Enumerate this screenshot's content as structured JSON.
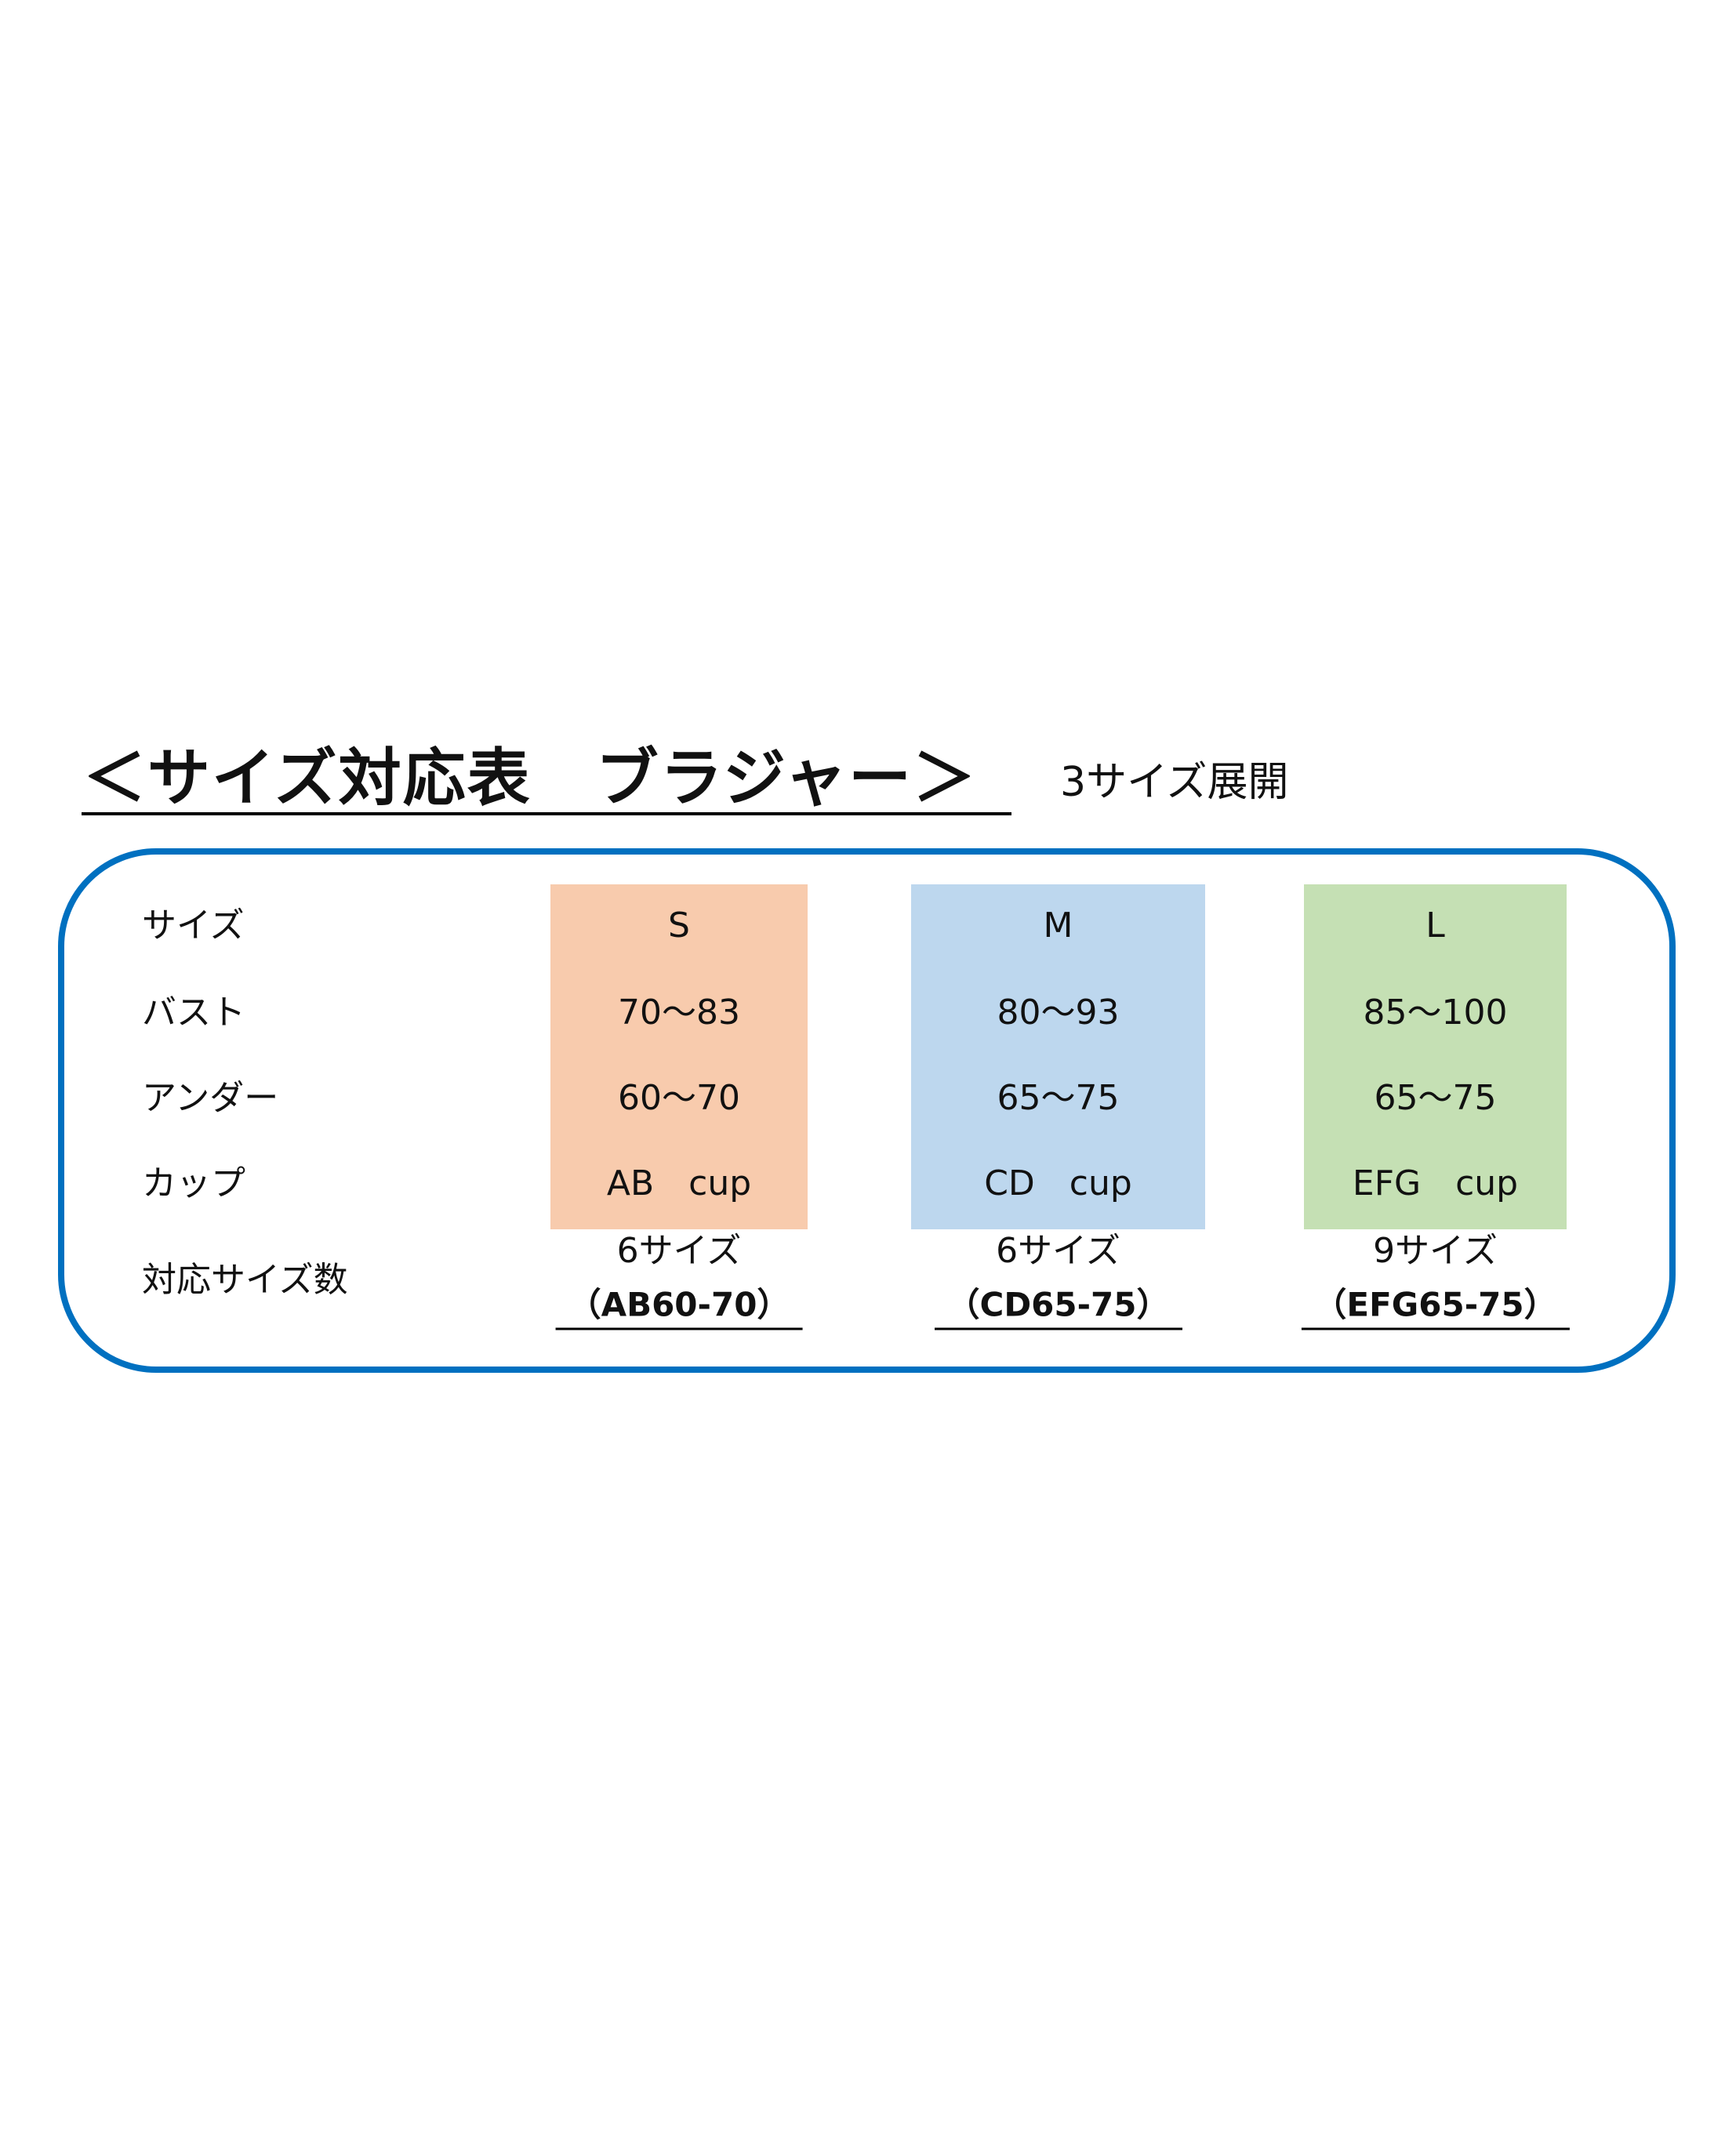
{
  "title": "＜サイズ対応表　ブラジャー＞",
  "subtitle": "3サイズ展開",
  "row_labels": [
    "サイズ",
    "バスト",
    "アンダー",
    "カップ",
    "対応サイズ数"
  ],
  "columns": [
    {
      "size": "S",
      "bust": "70〜83",
      "under": "60〜70",
      "cup": "AB　cup",
      "count": "6サイズ",
      "code": "（AB60-70）",
      "color": "#F8CBAD"
    },
    {
      "size": "M",
      "bust": "80〜93",
      "under": "65〜75",
      "cup": "CD　cup",
      "count": "6サイズ",
      "code": "（CD65-75）",
      "color": "#BDD7EE"
    },
    {
      "size": "L",
      "bust": "85〜100",
      "under": "65〜75",
      "cup": "EFG　cup",
      "count": "9サイズ",
      "code": "（EFG65-75）",
      "color": "#C5E0B4"
    }
  ],
  "border_color": "#0070C0"
}
